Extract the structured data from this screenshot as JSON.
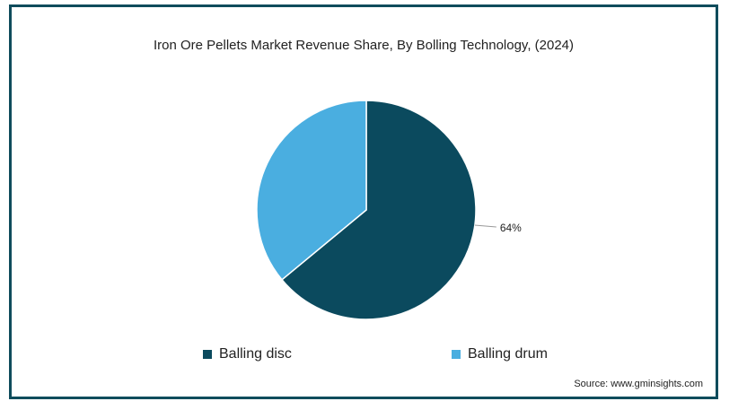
{
  "chart_data": {
    "type": "pie",
    "title": "Iron Ore Pellets Market Revenue Share, By Bolling Technology, (2024)",
    "series": [
      {
        "name": "Balling disc",
        "value": 64,
        "label": "64%",
        "color": "#0b4a5e"
      },
      {
        "name": "Balling drum",
        "value": 36,
        "label": "",
        "color": "#4aaee0"
      }
    ],
    "legend_position": "bottom"
  },
  "source": "Source: www.gminsights.com"
}
